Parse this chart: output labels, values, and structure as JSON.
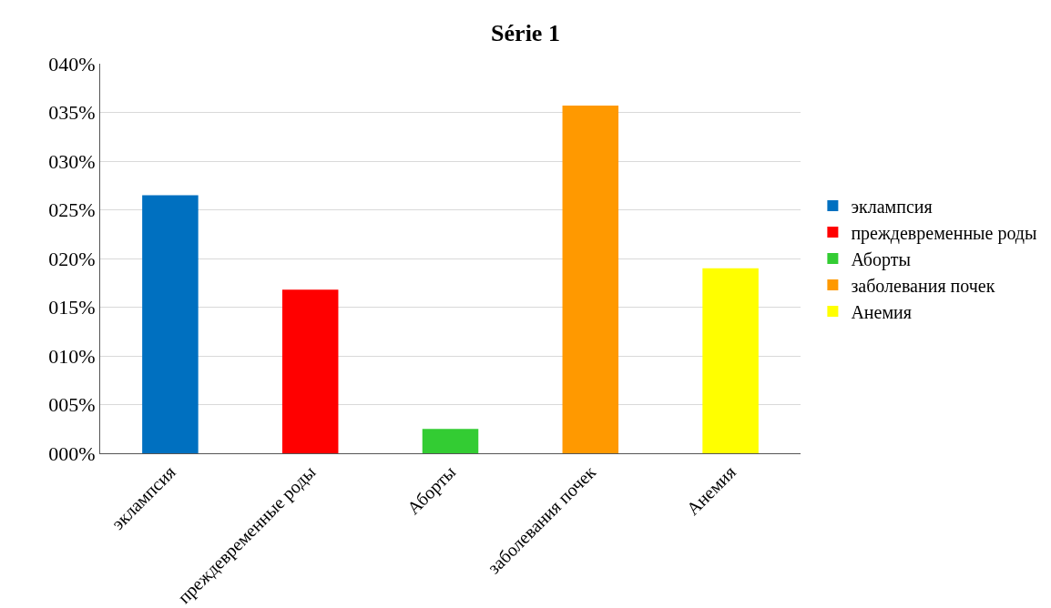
{
  "chart_data": {
    "type": "bar",
    "title": "Série 1",
    "categories": [
      "эклампсия",
      "преждевременные роды",
      "Аборты",
      "заболевания почек",
      "Анемия"
    ],
    "series": [
      {
        "name": "эклампсия",
        "color": "#0070c0",
        "values": [
          26.5,
          null,
          null,
          null,
          null
        ]
      },
      {
        "name": "преждевременные роды",
        "color": "#ff0000",
        "values": [
          null,
          16.8,
          null,
          null,
          null
        ]
      },
      {
        "name": "Аборты",
        "color": "#33cc33",
        "values": [
          null,
          null,
          2.5,
          null,
          null
        ]
      },
      {
        "name": "заболевания почек",
        "color": "#ff9900",
        "values": [
          null,
          null,
          null,
          35.7,
          null
        ]
      },
      {
        "name": "Анемия",
        "color": "#ffff00",
        "values": [
          null,
          null,
          null,
          null,
          19
        ]
      }
    ],
    "ylim": [
      0,
      40
    ],
    "yticks": [
      {
        "value": 0,
        "label": "000%"
      },
      {
        "value": 5,
        "label": "005%"
      },
      {
        "value": 10,
        "label": "010%"
      },
      {
        "value": 15,
        "label": "015%"
      },
      {
        "value": 20,
        "label": "020%"
      },
      {
        "value": 25,
        "label": "025%"
      },
      {
        "value": 30,
        "label": "030%"
      },
      {
        "value": 35,
        "label": "035%"
      },
      {
        "value": 40,
        "label": "040%"
      }
    ],
    "grid": "y",
    "legend": "right"
  }
}
